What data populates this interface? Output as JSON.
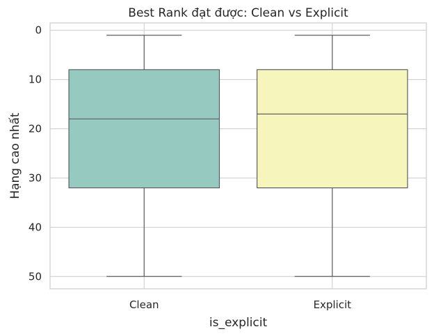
{
  "chart_data": {
    "type": "box",
    "title": "Best Rank đạt được: Clean vs Explicit",
    "xlabel": "is_explicit",
    "ylabel": "Hạng cao nhất",
    "y_inverted": true,
    "ylim": [
      -1.5,
      52.5
    ],
    "yticks": [
      0,
      10,
      20,
      30,
      40,
      50
    ],
    "grid": true,
    "categories": [
      "Clean",
      "Explicit"
    ],
    "boxes": [
      {
        "category": "Clean",
        "whisker_low": 1,
        "q1": 8,
        "median": 18,
        "q3": 32,
        "whisker_high": 50,
        "color": "#96cac1"
      },
      {
        "category": "Explicit",
        "whisker_low": 1,
        "q1": 8,
        "median": 17,
        "q3": 32,
        "whisker_high": 50,
        "color": "#f6f6bc"
      }
    ]
  }
}
